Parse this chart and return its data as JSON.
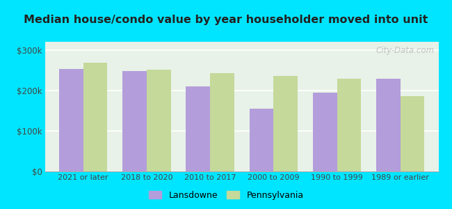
{
  "title": "Median house/condo value by year householder moved into unit",
  "categories": [
    "2021 or later",
    "2018 to 2020",
    "2010 to 2017",
    "2000 to 2009",
    "1990 to 1999",
    "1989 or earlier"
  ],
  "lansdowne": [
    253000,
    248000,
    210000,
    155000,
    195000,
    228000
  ],
  "pennsylvania": [
    268000,
    252000,
    243000,
    235000,
    228000,
    185000
  ],
  "lansdowne_color": "#b39ddb",
  "pennsylvania_color": "#c5d99a",
  "background_outer": "#00e5ff",
  "background_inner_color1": "#ddeedd",
  "background_inner_color2": "#f0f8f0",
  "ylabel_ticks": [
    "$0",
    "$100k",
    "$200k",
    "$300k"
  ],
  "ytick_values": [
    0,
    100000,
    200000,
    300000
  ],
  "ylim": [
    0,
    320000
  ],
  "legend_labels": [
    "Lansdowne",
    "Pennsylvania"
  ],
  "watermark": "City-Data.com"
}
